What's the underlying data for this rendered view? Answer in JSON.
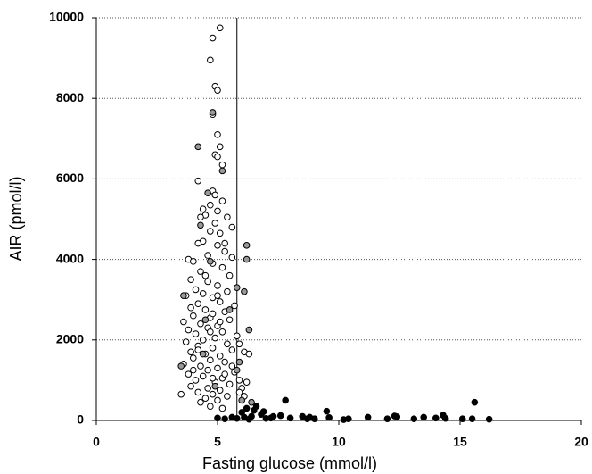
{
  "chart_data": {
    "type": "scatter",
    "x_label": "Fasting glucose (mmol/l)",
    "y_label": "AIR (pmol/l)",
    "xlim": [
      0,
      20
    ],
    "xticks": [
      0,
      5,
      10,
      15,
      20
    ],
    "ylim": [
      0,
      10000
    ],
    "yticks": [
      0,
      2000,
      4000,
      6000,
      8000,
      10000
    ],
    "grid": true,
    "reference_x": 5.8,
    "series": [
      {
        "color": "#ffffff",
        "x": [
          5.1,
          4.8,
          4.7,
          4.9,
          5.0,
          4.8,
          5.0,
          4.9,
          5.0,
          5.1,
          5.2,
          4.2,
          4.8,
          4.9,
          5.2,
          4.7,
          5.0,
          4.5,
          4.3,
          5.4,
          4.9,
          4.7,
          5.1,
          4.4,
          4.2,
          5.0,
          5.3,
          4.6,
          5.6,
          3.8,
          4.0,
          4.8,
          5.2,
          4.3,
          5.5,
          3.9,
          4.6,
          5.0,
          4.1,
          5.4,
          4.4,
          3.7,
          4.8,
          5.1,
          4.2,
          5.7,
          3.9,
          4.5,
          5.3,
          4.0,
          4.7,
          5.5,
          3.6,
          4.3,
          5.0,
          4.6,
          3.8,
          5.2,
          4.1,
          5.8,
          4.9,
          4.4,
          3.7,
          5.4,
          4.2,
          4.8,
          5.6,
          3.9,
          4.5,
          5.1,
          4.0,
          4.7,
          5.3,
          3.6,
          4.3,
          5.0,
          4.6,
          5.7,
          3.8,
          4.4,
          5.2,
          4.1,
          4.9,
          5.5,
          3.9,
          4.6,
          5.1,
          4.2,
          4.8,
          5.4,
          3.5,
          4.5,
          5.0,
          4.3,
          4.7,
          5.2,
          5.9,
          6.1,
          6.3,
          5.9,
          6.0,
          6.2,
          5.9,
          6.1,
          4.0,
          5.6,
          4.8,
          5.0,
          4.5,
          5.3,
          4.4,
          5.6,
          4.7,
          5.1,
          4.2,
          5.3,
          4.8
        ],
        "values": [
          9750,
          9500,
          8950,
          8300,
          8200,
          7600,
          7100,
          6600,
          6550,
          6800,
          6350,
          5950,
          5700,
          5600,
          5450,
          5350,
          5200,
          5100,
          5050,
          5050,
          4900,
          4700,
          4650,
          4450,
          4400,
          4350,
          4200,
          4100,
          4050,
          4000,
          3950,
          3900,
          3800,
          3700,
          3600,
          3500,
          3450,
          3350,
          3250,
          3200,
          3150,
          3100,
          3050,
          2950,
          2900,
          2850,
          2800,
          2750,
          2700,
          2600,
          2550,
          2500,
          2450,
          2400,
          2350,
          2300,
          2250,
          2200,
          2150,
          2100,
          2050,
          2000,
          1950,
          1900,
          1850,
          1800,
          1750,
          1700,
          1650,
          1600,
          1550,
          1500,
          1450,
          1400,
          1350,
          1300,
          1250,
          1200,
          1150,
          1100,
          1050,
          1000,
          950,
          900,
          850,
          800,
          750,
          700,
          650,
          600,
          650,
          550,
          500,
          450,
          350,
          300,
          1900,
          1700,
          1650,
          1000,
          800,
          950,
          700,
          600,
          1250,
          1350,
          2650,
          3100,
          3600,
          4400,
          5250,
          4800,
          2200,
          2450,
          1750,
          1150,
          1050
        ]
      },
      {
        "color": "#999999",
        "x": [
          4.2,
          4.8,
          5.2,
          4.6,
          4.3,
          6.2,
          6.2,
          5.8,
          6.1,
          4.7,
          3.6,
          4.5,
          6.3,
          3.5,
          5.9,
          4.9,
          5.8,
          6.0,
          6.4,
          4.4,
          5.5
        ],
        "values": [
          6800,
          7650,
          6200,
          5650,
          4850,
          4350,
          4000,
          3300,
          3200,
          3950,
          3100,
          2500,
          2250,
          1350,
          1450,
          850,
          1250,
          500,
          450,
          1650,
          2750
        ]
      },
      {
        "color": "#000000",
        "x": [
          5.8,
          6.0,
          6.2,
          6.4,
          6.6,
          6.8,
          7.0,
          7.3,
          7.6,
          7.8,
          8.0,
          8.5,
          8.7,
          8.8,
          9.5,
          9.6,
          10.2,
          10.4,
          11.2,
          12.0,
          12.3,
          12.4,
          13.1,
          13.5,
          14.0,
          14.3,
          14.4,
          15.1,
          15.5,
          15.6,
          16.2,
          5.0,
          5.3,
          6.1,
          6.5,
          6.9,
          5.6,
          6.3,
          7.2,
          9.0
        ],
        "values": [
          50,
          200,
          300,
          100,
          350,
          150,
          50,
          100,
          120,
          500,
          60,
          100,
          40,
          80,
          230,
          70,
          20,
          40,
          80,
          40,
          110,
          90,
          40,
          80,
          60,
          130,
          50,
          40,
          40,
          450,
          30,
          60,
          40,
          80,
          250,
          220,
          80,
          30,
          60,
          40
        ]
      }
    ]
  }
}
